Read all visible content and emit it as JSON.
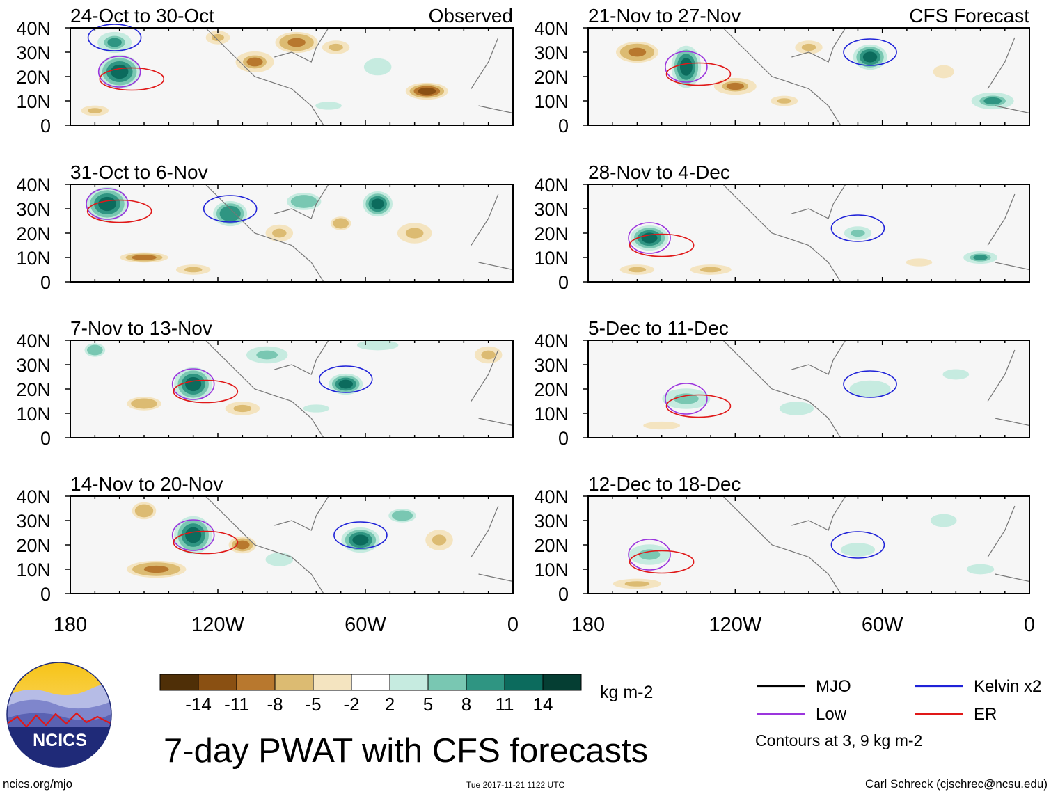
{
  "chart_data": {
    "type": "heatmap",
    "title": "7-day PWAT with CFS forecasts",
    "variable": "7-day precipitable water anomaly",
    "units": "kg m-2",
    "x_ticks": [
      "180",
      "120W",
      "60W",
      "0"
    ],
    "x_range": [
      -180,
      0
    ],
    "y_ticks": [
      "40N",
      "30N",
      "20N",
      "10N",
      "0"
    ],
    "y_range": [
      0,
      40
    ],
    "colorbar": {
      "levels": [
        "-14",
        "-11",
        "-8",
        "-5",
        "-2",
        "2",
        "5",
        "8",
        "11",
        "14"
      ],
      "colors": [
        "#4f2f07",
        "#8a5012",
        "#b8782e",
        "#dcbb72",
        "#f4e4c0",
        "#ffffff",
        "#c6ebe0",
        "#79c7b2",
        "#2f9582",
        "#0c6b5d",
        "#053e33"
      ]
    },
    "legend": [
      {
        "label": "MJO",
        "color": "#000000"
      },
      {
        "label": "Kelvin x2",
        "color": "#1f22d8"
      },
      {
        "label": "Low",
        "color": "#9b35dd"
      },
      {
        "label": "ER",
        "color": "#e01818"
      }
    ],
    "contours_note": "Contours at 3, 9 kg m-2",
    "panels": [
      {
        "col": 0,
        "row": 0,
        "title": "24-Oct to 30-Oct",
        "tag": "Observed"
      },
      {
        "col": 0,
        "row": 1,
        "title": "31-Oct to 6-Nov",
        "tag": ""
      },
      {
        "col": 0,
        "row": 2,
        "title": "7-Nov to 13-Nov",
        "tag": ""
      },
      {
        "col": 0,
        "row": 3,
        "title": "14-Nov to 20-Nov",
        "tag": ""
      },
      {
        "col": 1,
        "row": 0,
        "title": "21-Nov to 27-Nov",
        "tag": "CFS Forecast"
      },
      {
        "col": 1,
        "row": 1,
        "title": "28-Nov to 4-Dec",
        "tag": ""
      },
      {
        "col": 1,
        "row": 2,
        "title": "5-Dec to 11-Dec",
        "tag": ""
      },
      {
        "col": 1,
        "row": 3,
        "title": "12-Dec to 18-Dec",
        "tag": ""
      }
    ]
  },
  "footer": {
    "logo_text": "NCICS",
    "site": "ncics.org/mjo",
    "timestamp": "Tue 2017-11-21 1122 UTC",
    "author": "Carl Schreck (cjschrec@ncsu.edu)"
  }
}
